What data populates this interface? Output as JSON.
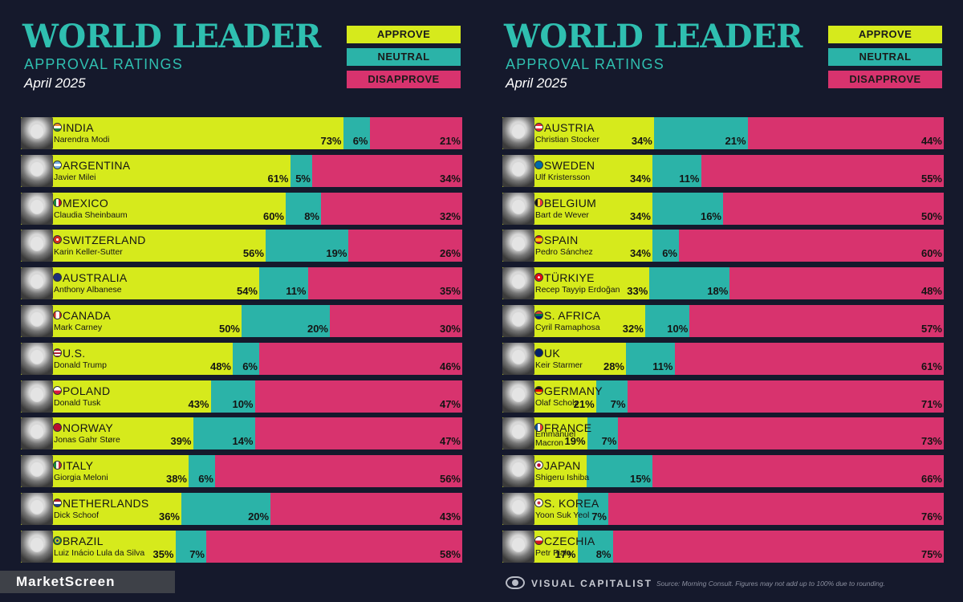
{
  "colors": {
    "approve": "#d6ea1c",
    "neutral": "#2bb3a8",
    "disapprove": "#d8336e",
    "background": "#15192c",
    "title": "#2fbfb0"
  },
  "chart_data": [
    {
      "type": "bar",
      "stacked": true,
      "orientation": "horizontal",
      "title": "WORLD LEADER",
      "subtitle": "APPROVAL RATINGS",
      "date": "April 2025",
      "legend": [
        "APPROVE",
        "NEUTRAL",
        "DISAPPROVE"
      ],
      "legend_placement": "top-right",
      "xlim": [
        0,
        100
      ],
      "rows": [
        {
          "country": "INDIA",
          "leader": "Narendra Modi",
          "flag": "india-flag-icon",
          "approve": 73,
          "neutral": 6,
          "disapprove": 21,
          "approve_label": "73%",
          "neutral_label": "6%",
          "disapprove_label": "21%"
        },
        {
          "country": "ARGENTINA",
          "leader": "Javier Milei",
          "flag": "argentina-flag-icon",
          "approve": 61,
          "neutral": 5,
          "disapprove": 34,
          "approve_label": "61%",
          "neutral_label": "5%",
          "disapprove_label": "34%"
        },
        {
          "country": "MEXICO",
          "leader": "Claudia Sheinbaum",
          "flag": "mexico-flag-icon",
          "approve": 60,
          "neutral": 8,
          "disapprove": 32,
          "approve_label": "60%",
          "neutral_label": "8%",
          "disapprove_label": "32%"
        },
        {
          "country": "SWITZERLAND",
          "leader": "Karin Keller-Sutter",
          "flag": "switzerland-flag-icon",
          "approve": 56,
          "neutral": 19,
          "disapprove": 26,
          "approve_label": "56%",
          "neutral_label": "19%",
          "disapprove_label": "26%"
        },
        {
          "country": "AUSTRALIA",
          "leader": "Anthony Albanese",
          "flag": "australia-flag-icon",
          "approve": 54,
          "neutral": 11,
          "disapprove": 35,
          "approve_label": "54%",
          "neutral_label": "11%",
          "disapprove_label": "35%"
        },
        {
          "country": "CANADA",
          "leader": "Mark Carney",
          "flag": "canada-flag-icon",
          "approve": 50,
          "neutral": 20,
          "disapprove": 30,
          "approve_label": "50%",
          "neutral_label": "20%",
          "disapprove_label": "30%"
        },
        {
          "country": "U.S.",
          "leader": "Donald Trump",
          "flag": "us-flag-icon",
          "approve": 48,
          "neutral": 6,
          "disapprove": 46,
          "approve_label": "48%",
          "neutral_label": "6%",
          "disapprove_label": "46%"
        },
        {
          "country": "POLAND",
          "leader": "Donald Tusk",
          "flag": "poland-flag-icon",
          "approve": 43,
          "neutral": 10,
          "disapprove": 47,
          "approve_label": "43%",
          "neutral_label": "10%",
          "disapprove_label": "47%"
        },
        {
          "country": "NORWAY",
          "leader": "Jonas Gahr Støre",
          "flag": "norway-flag-icon",
          "approve": 39,
          "neutral": 14,
          "disapprove": 47,
          "approve_label": "39%",
          "neutral_label": "14%",
          "disapprove_label": "47%"
        },
        {
          "country": "ITALY",
          "leader": "Giorgia Meloni",
          "flag": "italy-flag-icon",
          "approve": 38,
          "neutral": 6,
          "disapprove": 56,
          "approve_label": "38%",
          "neutral_label": "6%",
          "disapprove_label": "56%"
        },
        {
          "country": "NETHERLANDS",
          "leader": "Dick Schoof",
          "flag": "netherlands-flag-icon",
          "approve": 36,
          "neutral": 20,
          "disapprove": 43,
          "approve_label": "36%",
          "neutral_label": "20%",
          "disapprove_label": "43%"
        },
        {
          "country": "BRAZIL",
          "leader": "Luiz Inácio Lula da Silva",
          "flag": "brazil-flag-icon",
          "approve": 35,
          "neutral": 7,
          "disapprove": 58,
          "approve_label": "35%",
          "neutral_label": "7%",
          "disapprove_label": "58%"
        }
      ]
    },
    {
      "type": "bar",
      "stacked": true,
      "orientation": "horizontal",
      "title": "WORLD LEADER",
      "subtitle": "APPROVAL RATINGS",
      "date": "April 2025",
      "legend": [
        "APPROVE",
        "NEUTRAL",
        "DISAPPROVE"
      ],
      "legend_placement": "top-right",
      "xlim": [
        0,
        100
      ],
      "rows": [
        {
          "country": "AUSTRIA",
          "leader": "Christian Stocker",
          "flag": "austria-flag-icon",
          "approve": 34,
          "neutral": 21,
          "disapprove": 44,
          "approve_label": "34%",
          "neutral_label": "21%",
          "disapprove_label": "44%"
        },
        {
          "country": "SWEDEN",
          "leader": "Ulf Kristersson",
          "flag": "sweden-flag-icon",
          "approve": 34,
          "neutral": 11,
          "disapprove": 55,
          "approve_label": "34%",
          "neutral_label": "11%",
          "disapprove_label": "55%"
        },
        {
          "country": "BELGIUM",
          "leader": "Bart de Wever",
          "flag": "belgium-flag-icon",
          "approve": 34,
          "neutral": 16,
          "disapprove": 50,
          "approve_label": "34%",
          "neutral_label": "16%",
          "disapprove_label": "50%"
        },
        {
          "country": "SPAIN",
          "leader": "Pedro Sánchez",
          "flag": "spain-flag-icon",
          "approve": 34,
          "neutral": 6,
          "disapprove": 60,
          "approve_label": "34%",
          "neutral_label": "6%",
          "disapprove_label": "60%"
        },
        {
          "country": "TÜRKIYE",
          "leader": "Recep Tayyip Erdoğan",
          "flag": "turkiye-flag-icon",
          "approve": 33,
          "neutral": 18,
          "disapprove": 48,
          "approve_label": "33%",
          "neutral_label": "18%",
          "disapprove_label": "48%"
        },
        {
          "country": "S. AFRICA",
          "leader": "Cyril Ramaphosa",
          "flag": "south-africa-flag-icon",
          "approve": 32,
          "neutral": 10,
          "disapprove": 57,
          "approve_label": "32%",
          "neutral_label": "10%",
          "disapprove_label": "57%"
        },
        {
          "country": "UK",
          "leader": "Keir Starmer",
          "flag": "uk-flag-icon",
          "approve": 28,
          "neutral": 11,
          "disapprove": 61,
          "approve_label": "28%",
          "neutral_label": "11%",
          "disapprove_label": "61%"
        },
        {
          "country": "GERMANY",
          "leader": "Olaf Scholz",
          "flag": "germany-flag-icon",
          "approve": 21,
          "neutral": 7,
          "disapprove": 71,
          "approve_label": "21%",
          "neutral_label": "7%",
          "disapprove_label": "71%"
        },
        {
          "country": "FRANCE",
          "leader": "Emmanuel Macron",
          "flag": "france-flag-icon",
          "approve": 19,
          "neutral": 7,
          "disapprove": 73,
          "approve_label": "19%",
          "neutral_label": "7%",
          "disapprove_label": "73%"
        },
        {
          "country": "JAPAN",
          "leader": "Shigeru Ishiba",
          "flag": "japan-flag-icon",
          "approve": 19,
          "neutral": 15,
          "disapprove": 66,
          "approve_label": "",
          "neutral_label": "15%",
          "disapprove_label": "66%"
        },
        {
          "country": "S. KOREA",
          "leader": "Yoon Suk Yeol",
          "flag": "south-korea-flag-icon",
          "approve": 17,
          "neutral": 7,
          "disapprove": 76,
          "approve_label": "",
          "neutral_label": "7%",
          "disapprove_label": "76%"
        },
        {
          "country": "CZECHIA",
          "leader": "Petr Fiala",
          "flag": "czechia-flag-icon",
          "approve": 17,
          "neutral": 8,
          "disapprove": 75,
          "approve_label": "17%",
          "neutral_label": "8%",
          "disapprove_label": "75%"
        }
      ]
    }
  ],
  "footer": {
    "brand": "MarketScreen",
    "publisher": "VISUAL CAPITALIST",
    "source": "Source: Morning Consult. Figures may not add up to 100% due to rounding."
  }
}
